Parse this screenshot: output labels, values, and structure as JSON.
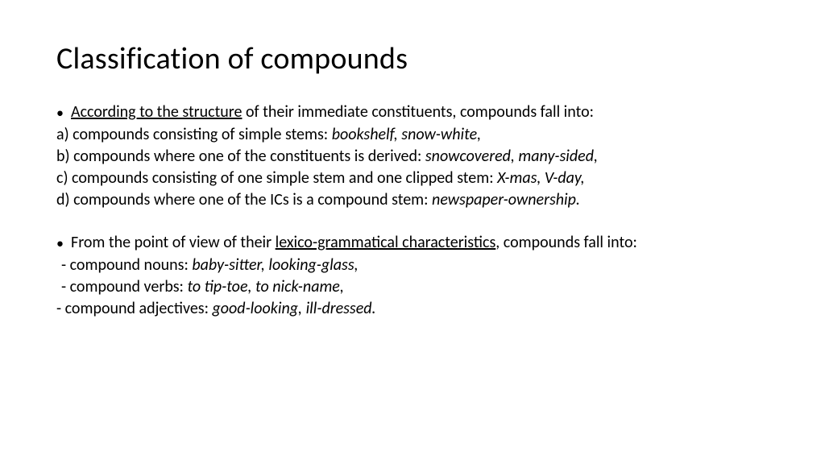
{
  "title": "Classification of compounds",
  "section1": {
    "lead_underlined": "According to the structure",
    "lead_rest": " of their immediate constituents, compounds fall into:",
    "a_text": "a) compounds consisting of simple stems: ",
    "a_examples": "bookshelf, snow-white,",
    "b_text": "b) compounds where one of the constituents is derived: ",
    "b_examples": "snowcovered, many-sided,",
    "c_text": "c) compounds consisting of one simple stem and one clipped stem: ",
    "c_examples": "X-mas, V-day,",
    "d_text": "d) compounds where one of the ICs is a compound stem: ",
    "d_examples": "newspaper-ownership."
  },
  "section2": {
    "lead_pre": "From the point of view of their ",
    "lead_underlined": "lexico-grammatical characteristics",
    "lead_post": ", compounds fall into:",
    "nouns_text": " - compound nouns: ",
    "nouns_examples": "baby-sitter, looking-glass,",
    "verbs_text": "  - compound verbs: ",
    "verbs_examples": "to tip-toe, to nick-name,",
    "adj_text": "- compound adjectives: ",
    "adj_examples": "good-looking, ill-dressed."
  },
  "style": {
    "background": "#ffffff",
    "text_color": "#000000",
    "title_fontsize": 38,
    "body_fontsize": 20,
    "font_family": "Calibri"
  }
}
